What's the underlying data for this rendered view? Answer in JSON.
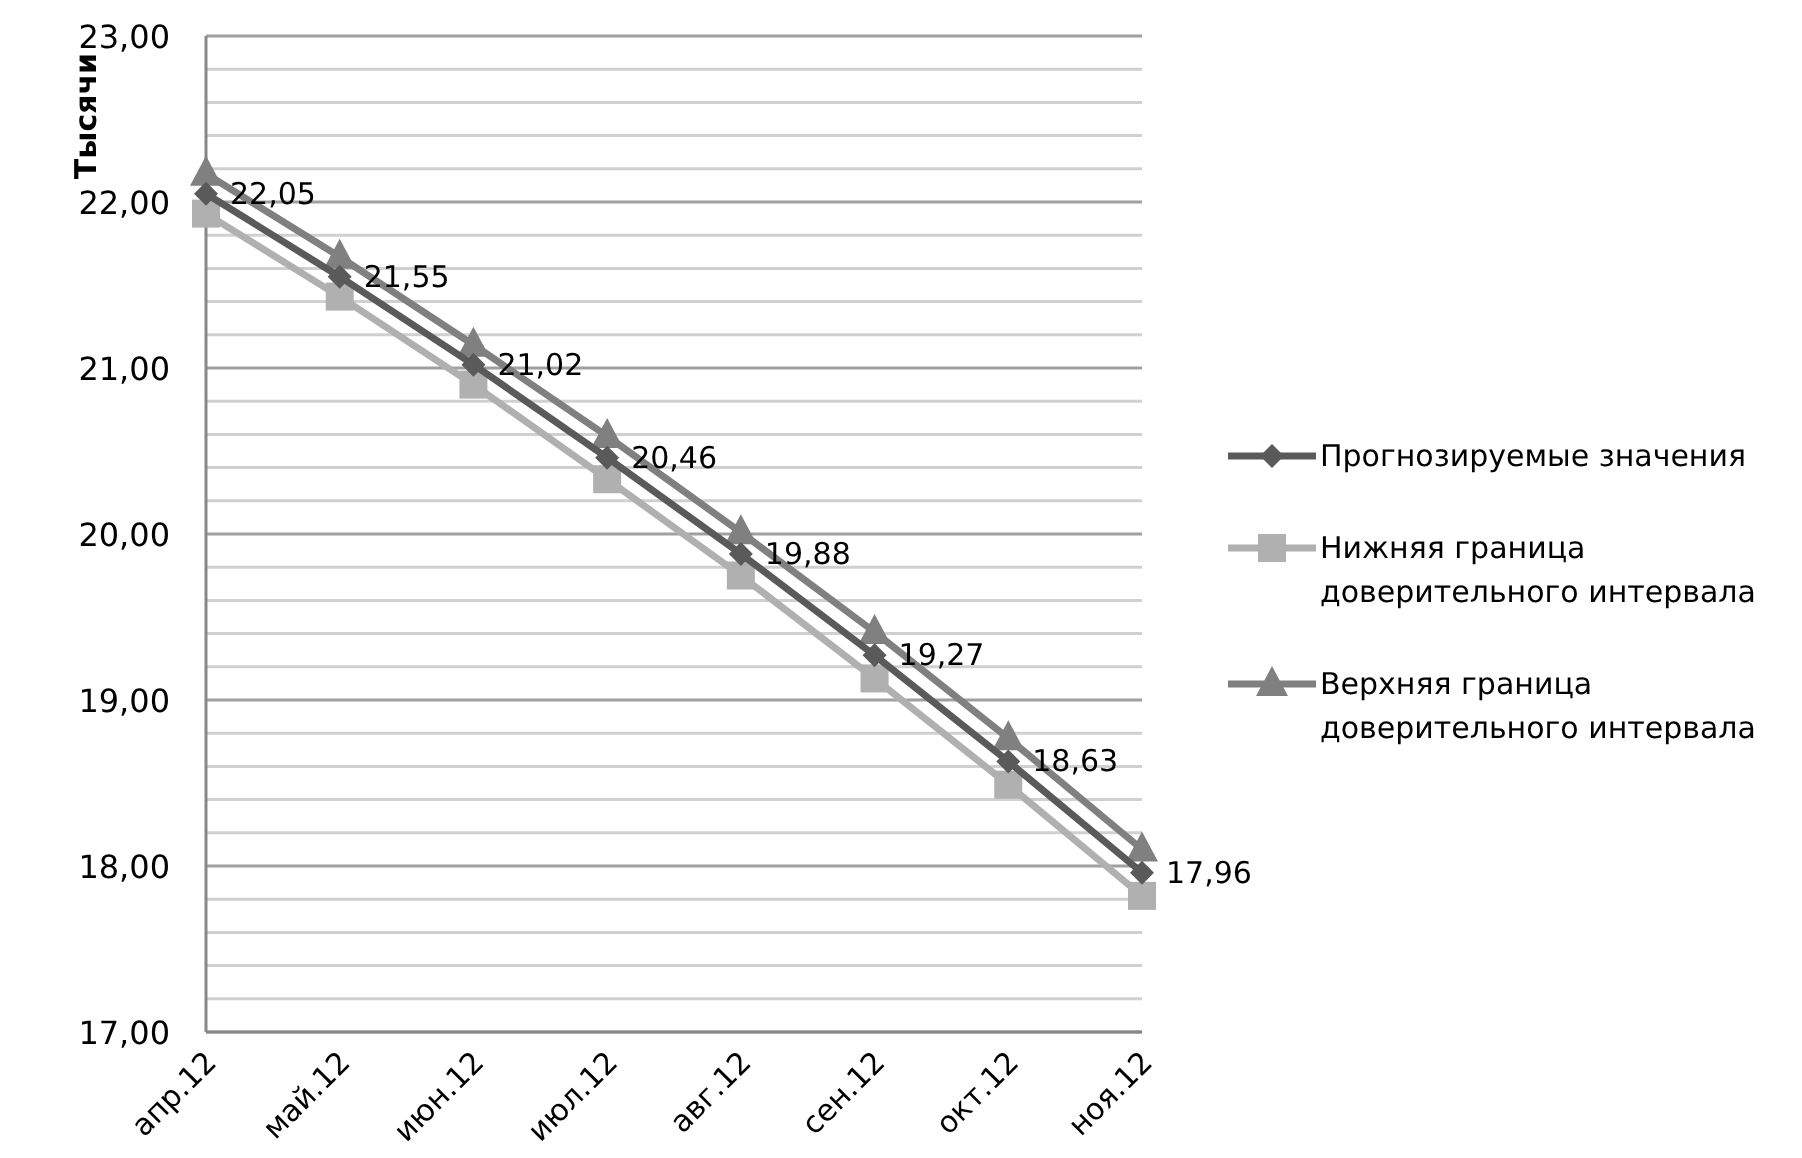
{
  "chart_data": {
    "type": "line",
    "ylabel": "Тысячи",
    "categories": [
      "апр.12",
      "май.12",
      "июн.12",
      "июл.12",
      "авг.12",
      "сен.12",
      "окт.12",
      "ноя.12"
    ],
    "series": [
      {
        "name": "Прогнозируемые значения",
        "color": "#5a5a5a",
        "marker": "diamond",
        "values": [
          22.05,
          21.55,
          21.02,
          20.46,
          19.88,
          19.27,
          18.63,
          17.96
        ],
        "value_labels": [
          "22,05",
          "21,55",
          "21,02",
          "20,46",
          "19,88",
          "19,27",
          "18,63",
          "17,96"
        ]
      },
      {
        "name": "Нижняя граница доверительного интервала",
        "color": "#b0b0b0",
        "marker": "square",
        "values": [
          21.93,
          21.43,
          20.9,
          20.33,
          19.75,
          19.13,
          18.49,
          17.82
        ]
      },
      {
        "name": "Верхняя граница доверительного интервала",
        "color": "#808080",
        "marker": "triangle",
        "values": [
          22.17,
          21.67,
          21.14,
          20.59,
          20.01,
          19.41,
          18.77,
          18.1
        ]
      }
    ],
    "ylim": [
      17,
      23
    ],
    "yticks": [
      {
        "value": 17,
        "label": "17,00"
      },
      {
        "value": 17.2,
        "label": null
      },
      {
        "value": 17.4,
        "label": null
      },
      {
        "value": 17.6,
        "label": null
      },
      {
        "value": 17.8,
        "label": null
      },
      {
        "value": 18,
        "label": "18,00"
      },
      {
        "value": 18.2,
        "label": null
      },
      {
        "value": 18.4,
        "label": null
      },
      {
        "value": 18.6,
        "label": null
      },
      {
        "value": 18.8,
        "label": null
      },
      {
        "value": 19,
        "label": "19,00"
      },
      {
        "value": 19.2,
        "label": null
      },
      {
        "value": 19.4,
        "label": null
      },
      {
        "value": 19.6,
        "label": null
      },
      {
        "value": 19.8,
        "label": null
      },
      {
        "value": 20,
        "label": "20,00"
      },
      {
        "value": 20.2,
        "label": null
      },
      {
        "value": 20.4,
        "label": null
      },
      {
        "value": 20.6,
        "label": null
      },
      {
        "value": 20.8,
        "label": null
      },
      {
        "value": 21,
        "label": "21,00"
      },
      {
        "value": 21.2,
        "label": null
      },
      {
        "value": 21.4,
        "label": null
      },
      {
        "value": 21.6,
        "label": null
      },
      {
        "value": 21.8,
        "label": null
      },
      {
        "value": 22,
        "label": "22,00"
      },
      {
        "value": 22.2,
        "label": null
      },
      {
        "value": 22.4,
        "label": null
      },
      {
        "value": 22.6,
        "label": null
      },
      {
        "value": 22.8,
        "label": null
      },
      {
        "value": 23,
        "label": "23,00"
      }
    ],
    "grid": "y",
    "legend": "right",
    "line_style": "solid"
  }
}
